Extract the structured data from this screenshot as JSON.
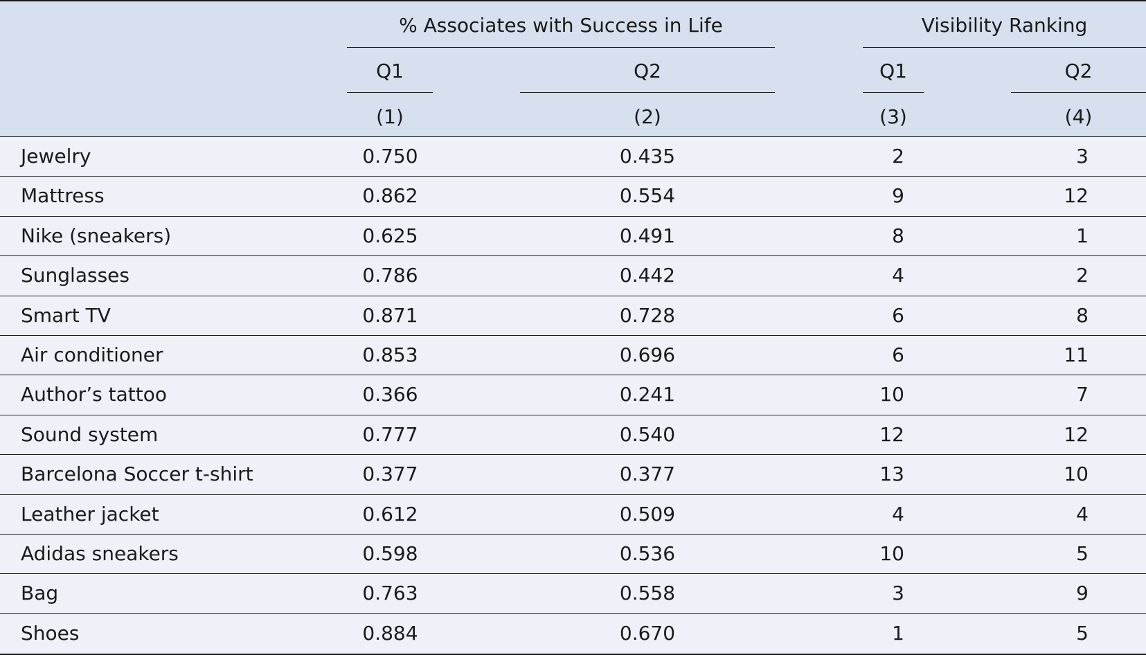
{
  "table": {
    "group_headers": {
      "success": "% Associates with Success in Life",
      "visibility": "Visibility Ranking"
    },
    "sub_headers": [
      "Q1",
      "Q2",
      "Q1",
      "Q2"
    ],
    "column_numbers": [
      "(1)",
      "(2)",
      "(3)",
      "(4)"
    ],
    "rows": [
      {
        "item": "Jewelry",
        "c1": "0.750",
        "c2": "0.435",
        "c3": "2",
        "c4": "3"
      },
      {
        "item": "Mattress",
        "c1": "0.862",
        "c2": "0.554",
        "c3": "9",
        "c4": "12"
      },
      {
        "item": "Nike (sneakers)",
        "c1": "0.625",
        "c2": "0.491",
        "c3": "8",
        "c4": "1"
      },
      {
        "item": "Sunglasses",
        "c1": "0.786",
        "c2": "0.442",
        "c3": "4",
        "c4": "2"
      },
      {
        "item": "Smart TV",
        "c1": "0.871",
        "c2": "0.728",
        "c3": "6",
        "c4": "8"
      },
      {
        "item": "Air conditioner",
        "c1": "0.853",
        "c2": "0.696",
        "c3": "6",
        "c4": "11"
      },
      {
        "item": "Author’s tattoo",
        "c1": "0.366",
        "c2": "0.241",
        "c3": "10",
        "c4": "7"
      },
      {
        "item": "Sound system",
        "c1": "0.777",
        "c2": "0.540",
        "c3": "12",
        "c4": "12"
      },
      {
        "item": "Barcelona Soccer t-shirt",
        "c1": "0.377",
        "c2": "0.377",
        "c3": "13",
        "c4": "10"
      },
      {
        "item": "Leather jacket",
        "c1": "0.612",
        "c2": "0.509",
        "c3": "4",
        "c4": "4"
      },
      {
        "item": "Adidas sneakers",
        "c1": "0.598",
        "c2": "0.536",
        "c3": "10",
        "c4": "5"
      },
      {
        "item": "Bag",
        "c1": "0.763",
        "c2": "0.558",
        "c3": "3",
        "c4": "9"
      },
      {
        "item": "Shoes",
        "c1": "0.884",
        "c2": "0.670",
        "c3": "1",
        "c4": "5"
      }
    ]
  }
}
